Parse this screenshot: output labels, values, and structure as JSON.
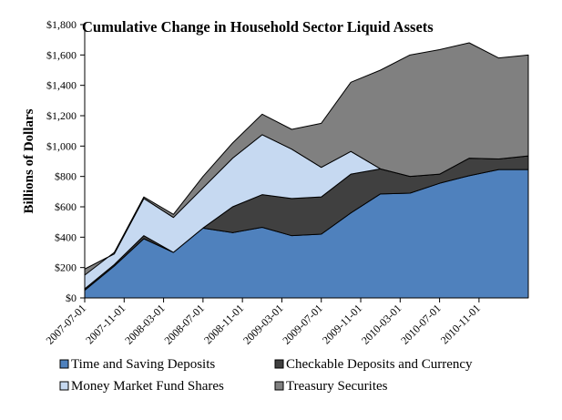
{
  "chart_data": {
    "type": "area",
    "stacked": true,
    "title": "Cumulative Change in Household Sector Liquid Assets",
    "xlabel": "",
    "ylabel": "Billions of Dollars",
    "ylim": [
      0,
      1800
    ],
    "yticks": [
      0,
      200,
      400,
      600,
      800,
      1000,
      1200,
      1400,
      1600,
      1800
    ],
    "ytick_labels": [
      "$0",
      "$200",
      "$400",
      "$600",
      "$800",
      "$1,000",
      "$1,200",
      "$1,400",
      "$1,600",
      "$1,800"
    ],
    "xtick_labels": [
      "2007-07-01",
      "2007-11-01",
      "2008-03-01",
      "2008-07-01",
      "2008-11-01",
      "2009-03-01",
      "2009-07-01",
      "2009-11-01",
      "2010-03-01",
      "2010-07-01",
      "2010-11-01"
    ],
    "x": [
      "2007Q2",
      "2007Q3",
      "2007Q4",
      "2008Q1",
      "2008Q2",
      "2008Q3",
      "2008Q4",
      "2009Q1",
      "2009Q2",
      "2009Q3",
      "2009Q4",
      "2010Q1",
      "2010Q2",
      "2010Q3",
      "2010Q4",
      "2011Q1"
    ],
    "series": [
      {
        "name": "Time and Saving Deposits",
        "color": "#4f81bd",
        "values": [
          50,
          210,
          390,
          300,
          460,
          430,
          465,
          410,
          420,
          560,
          685,
          690,
          755,
          805,
          845,
          845
        ]
      },
      {
        "name": "Checkable Deposits and Currency",
        "color": "#404040",
        "values": [
          10,
          10,
          20,
          0,
          0,
          170,
          215,
          245,
          245,
          255,
          165,
          110,
          60,
          115,
          70,
          90
        ]
      },
      {
        "name": "Money Market Fund Shares",
        "color": "#c6d9f1",
        "values": [
          130,
          70,
          245,
          230,
          265,
          320,
          395,
          325,
          195,
          150,
          0,
          0,
          0,
          0,
          0,
          0
        ]
      },
      {
        "name": "Treasury Securites",
        "color": "#808080",
        "values": [
          -40,
          10,
          10,
          20,
          75,
          100,
          135,
          130,
          290,
          455,
          650,
          800,
          820,
          760,
          665,
          665
        ]
      }
    ],
    "legend": {
      "position": "bottom",
      "order": [
        "Time and Saving Deposits",
        "Checkable Deposits and Currency",
        "Money Market Fund Shares",
        "Treasury Securites"
      ]
    }
  }
}
